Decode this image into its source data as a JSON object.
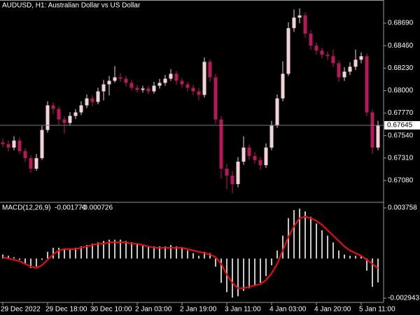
{
  "chart_data": [
    {
      "type": "candlestick",
      "title": "AUDUSD, H1:  Australian Dollar vs US Dollar",
      "open": [
        0.6747,
        0.67453,
        0.67417,
        0.67489,
        0.67381,
        0.67309,
        0.67201,
        0.67309,
        0.67597,
        0.67849,
        0.67813,
        0.67705,
        0.67669,
        0.67741,
        0.67777,
        0.67849,
        0.6792,
        0.67884,
        0.67992,
        0.68064,
        0.681,
        0.68136,
        0.68122,
        0.68079,
        0.68028,
        0.68007,
        0.68021,
        0.67992,
        0.6805,
        0.68079,
        0.68122,
        0.68172,
        0.681,
        0.68064,
        0.68028,
        0.67992,
        0.67956,
        0.68294,
        0.68136,
        0.67705,
        0.67201,
        0.6713,
        0.67043,
        0.67273,
        0.67417,
        0.67331,
        0.67288,
        0.67237,
        0.67417,
        0.67647,
        0.6792,
        0.68172,
        0.68639,
        0.68747,
        0.68769,
        0.68582,
        0.6846,
        0.68409,
        0.68366,
        0.68352,
        0.6828,
        0.68136,
        0.68194,
        0.68244,
        0.68316,
        0.68352,
        0.67777,
        0.67417
      ],
      "high": [
        0.6751,
        0.6749,
        0.6753,
        0.6752,
        0.6741,
        0.6734,
        0.6735,
        0.6764,
        0.6789,
        0.6788,
        0.6784,
        0.6774,
        0.6778,
        0.6781,
        0.6789,
        0.6796,
        0.6795,
        0.6803,
        0.6811,
        0.6815,
        0.6825,
        0.6818,
        0.6815,
        0.6811,
        0.6806,
        0.6805,
        0.6805,
        0.6809,
        0.6812,
        0.6816,
        0.6822,
        0.682,
        0.6813,
        0.6809,
        0.6806,
        0.6803,
        0.6834,
        0.6832,
        0.6817,
        0.6774,
        0.6725,
        0.6718,
        0.6732,
        0.6753,
        0.6745,
        0.6737,
        0.6732,
        0.6746,
        0.6769,
        0.6796,
        0.683,
        0.687,
        0.6883,
        0.6884,
        0.688,
        0.6862,
        0.6849,
        0.6844,
        0.684,
        0.6842,
        0.6831,
        0.6824,
        0.6829,
        0.6842,
        0.6839,
        0.6838,
        0.6781,
        0.6769
      ],
      "low": [
        0.6742,
        0.6738,
        0.6739,
        0.6735,
        0.6727,
        0.6716,
        0.6718,
        0.6729,
        0.6757,
        0.6776,
        0.6765,
        0.6756,
        0.6764,
        0.6771,
        0.6775,
        0.6782,
        0.6784,
        0.6786,
        0.679,
        0.6795,
        0.6808,
        0.6809,
        0.6804,
        0.68,
        0.6798,
        0.6798,
        0.6796,
        0.6797,
        0.6802,
        0.6805,
        0.681,
        0.6806,
        0.6803,
        0.6799,
        0.6795,
        0.679,
        0.6793,
        0.6809,
        0.6766,
        0.671,
        0.6699,
        0.6695,
        0.6701,
        0.6724,
        0.6729,
        0.6725,
        0.6719,
        0.6721,
        0.6739,
        0.6762,
        0.6789,
        0.6815,
        0.686,
        0.6869,
        0.6854,
        0.6842,
        0.6837,
        0.6833,
        0.6831,
        0.6824,
        0.6809,
        0.681,
        0.6816,
        0.6821,
        0.6828,
        0.6774,
        0.6735,
        0.6739
      ],
      "close": [
        0.67453,
        0.67417,
        0.67489,
        0.67381,
        0.67309,
        0.67201,
        0.67309,
        0.67597,
        0.67849,
        0.67813,
        0.67705,
        0.67669,
        0.67741,
        0.67777,
        0.67849,
        0.6792,
        0.67884,
        0.67992,
        0.68064,
        0.681,
        0.68136,
        0.68122,
        0.68079,
        0.68028,
        0.68007,
        0.68021,
        0.67992,
        0.6805,
        0.68079,
        0.68122,
        0.68172,
        0.681,
        0.68064,
        0.68028,
        0.67992,
        0.67956,
        0.68294,
        0.68136,
        0.67705,
        0.67201,
        0.6713,
        0.67043,
        0.67273,
        0.67417,
        0.67331,
        0.67288,
        0.67237,
        0.67417,
        0.67647,
        0.6792,
        0.68172,
        0.68639,
        0.68747,
        0.68769,
        0.68582,
        0.6846,
        0.68409,
        0.68366,
        0.68352,
        0.6828,
        0.68136,
        0.68194,
        0.68244,
        0.68316,
        0.68352,
        0.67777,
        0.67417,
        0.67645
      ],
      "up_color": "#f3d3da",
      "down_color": "#b8175a",
      "ylim": [
        0.66857,
        0.68927
      ],
      "yticks": [
        {
          "value": 0.6869,
          "label": "0.68690"
        },
        {
          "value": 0.6846,
          "label": "0.68460"
        },
        {
          "value": 0.6823,
          "label": "0.68230"
        },
        {
          "value": 0.68,
          "label": "0.68000"
        },
        {
          "value": 0.6777,
          "label": "0.67770"
        },
        {
          "value": 0.6754,
          "label": "0.67540"
        },
        {
          "value": 0.6731,
          "label": "0.67310"
        },
        {
          "value": 0.6708,
          "label": "0.67080"
        }
      ],
      "last_price": {
        "value": 0.67645,
        "label": "0.67645"
      }
    },
    {
      "type": "macd",
      "title": "MACD(12,26,9)",
      "value_labels": [
        "-0.001770",
        "-0.000726"
      ],
      "categories": [
        "29 Dec 2022",
        null,
        null,
        null,
        null,
        null,
        null,
        null,
        "29 Dec 18:00",
        null,
        null,
        null,
        null,
        null,
        null,
        null,
        "30 Dec 10:00",
        null,
        null,
        null,
        null,
        null,
        null,
        null,
        "2 Jan 03:00",
        null,
        null,
        null,
        null,
        null,
        null,
        null,
        "2 Jan 19:00",
        null,
        null,
        null,
        null,
        null,
        null,
        null,
        "3 Jan 11:00",
        null,
        null,
        null,
        null,
        null,
        null,
        null,
        "4 Jan 03:00",
        null,
        null,
        null,
        null,
        null,
        null,
        null,
        "4 Jan 20:00",
        null,
        null,
        null,
        null,
        null,
        null,
        null,
        "5 Jan 11:00",
        null,
        null,
        null
      ],
      "histogram": {
        "color": "#c8c8c8",
        "values": [
          0.0003,
          0.0002,
          0.0001,
          -0.0001,
          -0.0004,
          -0.0007,
          -0.0006,
          -0.0001,
          0.0005,
          0.0008,
          0.0008,
          0.0007,
          0.0007,
          0.0008,
          0.0009,
          0.001,
          0.0011,
          0.0012,
          0.0013,
          0.0014,
          0.0014,
          0.0014,
          0.0013,
          0.0012,
          0.0011,
          0.001,
          0.0009,
          0.0009,
          0.0009,
          0.0009,
          0.001,
          0.0009,
          0.0008,
          0.0006,
          0.0004,
          0.0002,
          0.0005,
          0.0004,
          -0.0006,
          -0.0018,
          -0.0025,
          -0.0029,
          -0.0028,
          -0.0024,
          -0.0022,
          -0.002,
          -0.0018,
          -0.0013,
          -0.0005,
          0.0006,
          0.0017,
          0.003,
          0.0036,
          0.0037,
          0.0035,
          0.0031,
          0.0026,
          0.0021,
          0.0017,
          0.0012,
          0.0006,
          0.0003,
          0.0002,
          0.0002,
          0.0002,
          -0.0009,
          -0.0021,
          -0.00177
        ]
      },
      "signal": {
        "color": "#e01010",
        "values": [
          0.0001,
          0,
          -0.0001,
          -0.0002,
          -0.0004,
          -0.0006,
          -0.0007,
          -0.0005,
          -0.0001,
          0.0003,
          0.0006,
          0.0007,
          0.0007,
          0.0007,
          0.0008,
          0.0009,
          0.001,
          0.0011,
          0.0011,
          0.0012,
          0.0012,
          0.0012,
          0.0012,
          0.0011,
          0.0011,
          0.001,
          0.0009,
          0.0008,
          0.0008,
          0.0008,
          0.0008,
          0.0008,
          0.0008,
          0.0007,
          0.0006,
          0.0005,
          0.0004,
          0.0003,
          0.0001,
          -0.0004,
          -0.0012,
          -0.0018,
          -0.0022,
          -0.0022,
          -0.0021,
          -0.002,
          -0.0019,
          -0.0016,
          -0.0011,
          -0.0004,
          0.0006,
          0.0016,
          0.0024,
          0.003,
          0.0031,
          0.003,
          0.0028,
          0.0025,
          0.0021,
          0.0017,
          0.0013,
          0.0009,
          0.0006,
          0.0004,
          0.0002,
          -0.0001,
          -0.0004,
          -0.000726
        ]
      },
      "ylim": [
        -0.003255,
        0.004122
      ],
      "yticks": [
        0.003758,
        -0.002943
      ]
    }
  ]
}
